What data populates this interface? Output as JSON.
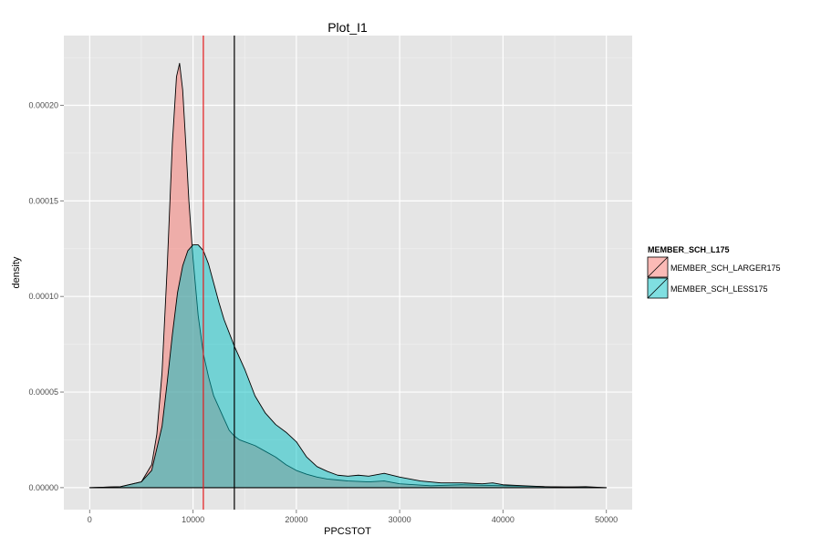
{
  "chart_data": {
    "type": "area",
    "title": "Plot_I1",
    "xlabel": "PPCSTOT",
    "ylabel": "density",
    "xlim": [
      -2500,
      52500
    ],
    "ylim": [
      -1.15e-05,
      0.0002365
    ],
    "x_ticks": [
      0,
      10000,
      20000,
      30000,
      40000,
      50000
    ],
    "x_tick_labels": [
      "0",
      "10000",
      "20000",
      "30000",
      "40000",
      "50000"
    ],
    "y_ticks": [
      0.0,
      5e-05,
      0.0001,
      0.00015,
      0.0002
    ],
    "y_tick_labels": [
      "0.00000",
      "0.00005",
      "0.00010",
      "0.00015",
      "0.00020"
    ],
    "grid": true,
    "legend": {
      "title": "MEMBER_SCH_L175",
      "position": "right"
    },
    "series": [
      {
        "name": "MEMBER_SCH_LARGER175",
        "color": "#F8766D",
        "mean_line": 11000,
        "x": [
          0,
          3000,
          5000,
          6000,
          6500,
          7000,
          7500,
          8000,
          8400,
          8700,
          9000,
          9300,
          9600,
          10000,
          10500,
          11000,
          11500,
          12000,
          12500,
          13000,
          13500,
          14000,
          14500,
          15000,
          16000,
          17000,
          18000,
          19000,
          20000,
          21000,
          22000,
          23000,
          24000,
          25000,
          27000,
          28500,
          30000,
          33000,
          36000,
          40000,
          44000,
          50000
        ],
        "values": [
          0,
          5e-07,
          3e-06,
          1.2e-05,
          2.8e-05,
          6e-05,
          0.000115,
          0.00018,
          0.000215,
          0.000222,
          0.000208,
          0.00018,
          0.00015,
          0.00012,
          9e-05,
          7e-05,
          5.8e-05,
          4.8e-05,
          4.2e-05,
          3.6e-05,
          3e-05,
          2.7e-05,
          2.5e-05,
          2.4e-05,
          2.2e-05,
          1.9e-05,
          1.6e-05,
          1.2e-05,
          9e-06,
          7e-06,
          5.5e-06,
          4.5e-06,
          4e-06,
          3.5e-06,
          3e-06,
          3.5e-06,
          2e-06,
          1e-06,
          1.5e-06,
          1e-06,
          5e-07,
          0
        ]
      },
      {
        "name": "MEMBER_SCH_LESS175",
        "color": "#00BFC4",
        "mean_line": 14000,
        "x": [
          0,
          3000,
          5000,
          6000,
          7000,
          7500,
          8000,
          8500,
          9000,
          9500,
          10000,
          10500,
          11000,
          11500,
          12000,
          12500,
          13000,
          14000,
          15000,
          16000,
          17000,
          18000,
          19000,
          20000,
          21000,
          22000,
          23000,
          24000,
          25000,
          26000,
          27000,
          28500,
          30000,
          32000,
          34000,
          36000,
          38000,
          39000,
          40000,
          42000,
          44000,
          46000,
          48000,
          50000
        ],
        "values": [
          0,
          5e-07,
          3e-06,
          9e-06,
          3.2e-05,
          5.5e-05,
          8e-05,
          0.000102,
          0.000116,
          0.000124,
          0.000127,
          0.000127,
          0.000124,
          0.000117,
          0.000107,
          9.7e-05,
          8.8e-05,
          7.4e-05,
          6.2e-05,
          4.8e-05,
          3.9e-05,
          3.3e-05,
          2.9e-05,
          2.4e-05,
          1.6e-05,
          1.1e-05,
          8.5e-06,
          6.5e-06,
          6e-06,
          6.5e-06,
          6e-06,
          7.5e-06,
          5.5e-06,
          3.5e-06,
          2.5e-06,
          2.5e-06,
          2e-06,
          2.5e-06,
          1.5e-06,
          1e-06,
          5e-07,
          3e-07,
          5e-07,
          0
        ]
      }
    ]
  }
}
